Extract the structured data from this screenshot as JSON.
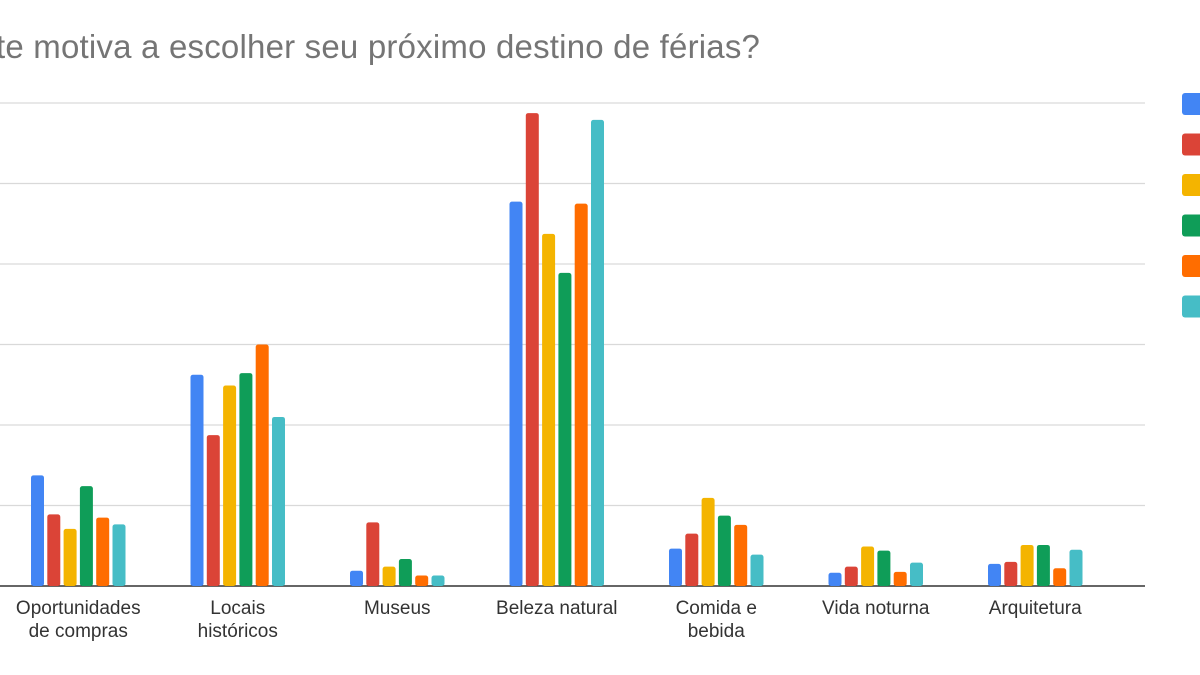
{
  "chart_data": {
    "type": "bar",
    "title": "te motiva a escolher seu próximo destino de férias?",
    "categories": [
      [
        "Oportunidades",
        "de compras"
      ],
      [
        "Locais",
        "históricos"
      ],
      [
        "Museus"
      ],
      [
        "Beleza natural"
      ],
      [
        "Comida e",
        "bebida"
      ],
      [
        "Vida noturna"
      ],
      [
        "Arquitetura"
      ]
    ],
    "series": [
      {
        "color": "#4285F4",
        "values": [
          27.5,
          52.5,
          3.8,
          95.5,
          9.3,
          3.3,
          5.5
        ]
      },
      {
        "color": "#DB4437",
        "values": [
          17.8,
          37.5,
          15.8,
          117.5,
          13.0,
          4.8,
          6.0
        ]
      },
      {
        "color": "#F4B400",
        "values": [
          14.2,
          49.8,
          4.8,
          87.5,
          21.9,
          9.8,
          10.2
        ]
      },
      {
        "color": "#0F9D58",
        "values": [
          24.8,
          52.9,
          6.7,
          77.8,
          17.5,
          8.8,
          10.2
        ]
      },
      {
        "color": "#FF6D00",
        "values": [
          17.0,
          60.0,
          2.6,
          95.0,
          15.2,
          3.5,
          4.4
        ]
      },
      {
        "color": "#46BDC6",
        "values": [
          15.3,
          42.0,
          2.6,
          115.8,
          7.8,
          5.8,
          9.0
        ]
      }
    ],
    "ylim": [
      0,
      120
    ],
    "grid": true,
    "legend_position": "right"
  }
}
